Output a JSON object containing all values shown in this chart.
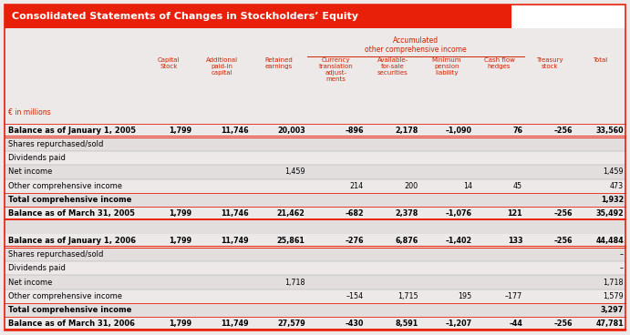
{
  "title": "Consolidated Statements of Changes in Stockholders’ Equity",
  "title_bg": "#e8200a",
  "title_text_color": "#ffffff",
  "background_color": "#ede9e9",
  "col_label_color": "#cc2200",
  "col_units": "€ in millions",
  "accumulated_header": "Accumulated\nother comprehensive income",
  "columns": [
    "Capital\nStock",
    "Additional\npaid-in\ncapital",
    "Retained\nearnings",
    "Currency\ntranslation\nadjust-\nments",
    "Available-\nfor-sale\nsecurities",
    "Minimum\npension\nliability",
    "Cash flow\nhedges",
    "Treasury\nstock",
    "Total"
  ],
  "rows": [
    {
      "label": "Balance as of January 1, 2005",
      "bold": true,
      "values": [
        "1,799",
        "11,746",
        "20,003",
        "–896",
        "2,178",
        "–1,090",
        "76",
        "–256",
        "33,560"
      ],
      "separator": "double_red",
      "bg": false
    },
    {
      "label": "Shares repurchased/sold",
      "bold": false,
      "values": [
        "",
        "",
        "",
        "",
        "",
        "",
        "",
        "",
        ""
      ],
      "separator": "single_gray",
      "bg": true
    },
    {
      "label": "Dividends paid",
      "bold": false,
      "values": [
        "",
        "",
        "",
        "",
        "",
        "",
        "",
        "",
        ""
      ],
      "separator": "single_gray",
      "bg": false
    },
    {
      "label": "Net income",
      "bold": false,
      "values": [
        "",
        "",
        "1,459",
        "",
        "",
        "",
        "",
        "",
        "1,459"
      ],
      "separator": "single_gray",
      "bg": true
    },
    {
      "label": "Other comprehensive income",
      "bold": false,
      "values": [
        "",
        "",
        "",
        "214",
        "200",
        "14",
        "45",
        "",
        "473"
      ],
      "separator": "single_red",
      "bg": false
    },
    {
      "label": "Total comprehensive income",
      "bold": true,
      "values": [
        "",
        "",
        "",
        "",
        "",
        "",
        "",
        "",
        "1,932"
      ],
      "separator": "single_red",
      "bg": true
    },
    {
      "label": "Balance as of March 31, 2005",
      "bold": true,
      "values": [
        "1,799",
        "11,746",
        "21,462",
        "–682",
        "2,378",
        "–1,076",
        "121",
        "–256",
        "35,492"
      ],
      "separator": "double_red",
      "bg": false
    },
    {
      "label": "",
      "bold": false,
      "values": [
        "",
        "",
        "",
        "",
        "",
        "",
        "",
        "",
        ""
      ],
      "separator": "none",
      "bg": true
    },
    {
      "label": "Balance as of January 1, 2006",
      "bold": true,
      "values": [
        "1,799",
        "11,749",
        "25,861",
        "–276",
        "6,876",
        "–1,402",
        "133",
        "–256",
        "44,484"
      ],
      "separator": "double_red",
      "bg": false
    },
    {
      "label": "Shares repurchased/sold",
      "bold": false,
      "values": [
        "",
        "",
        "",
        "",
        "",
        "",
        "",
        "",
        "–"
      ],
      "separator": "single_gray",
      "bg": true
    },
    {
      "label": "Dividends paid",
      "bold": false,
      "values": [
        "",
        "",
        "",
        "",
        "",
        "",
        "",
        "",
        "–"
      ],
      "separator": "single_gray",
      "bg": false
    },
    {
      "label": "Net income",
      "bold": false,
      "values": [
        "",
        "",
        "1,718",
        "",
        "",
        "",
        "",
        "",
        "1,718"
      ],
      "separator": "single_gray",
      "bg": true
    },
    {
      "label": "Other comprehensive income",
      "bold": false,
      "values": [
        "",
        "",
        "",
        "–154",
        "1,715",
        "195",
        "–177",
        "",
        "1,579"
      ],
      "separator": "single_red",
      "bg": false
    },
    {
      "label": "Total comprehensive income",
      "bold": true,
      "values": [
        "",
        "",
        "",
        "",
        "",
        "",
        "",
        "",
        "3,297"
      ],
      "separator": "single_red",
      "bg": true
    },
    {
      "label": "Balance as of March 31, 2006",
      "bold": true,
      "values": [
        "1,799",
        "11,749",
        "27,579",
        "–430",
        "8,591",
        "–1,207",
        "–44",
        "–256",
        "47,781"
      ],
      "separator": "double_red",
      "bg": false
    }
  ],
  "stripe_color": "#e2dede",
  "red_line_color": "#e8200a",
  "gray_line_color": "#aaaaaa",
  "border_color": "#e8200a",
  "white_box_color": "#ffffff"
}
